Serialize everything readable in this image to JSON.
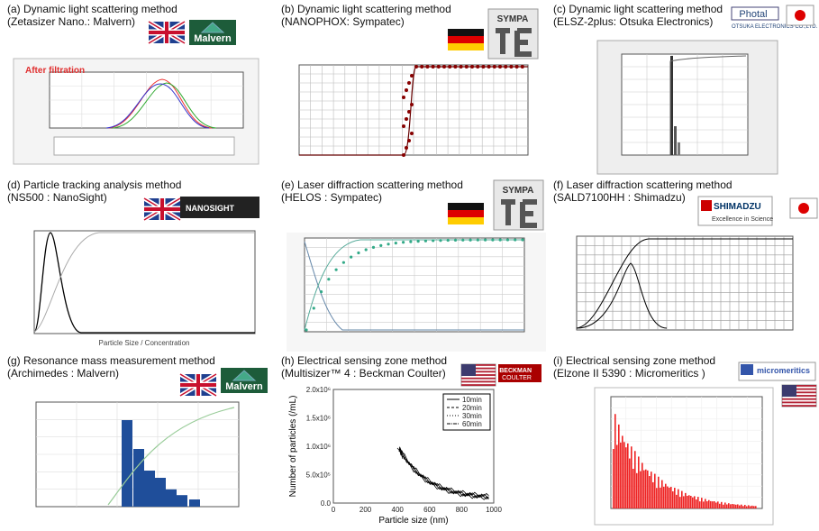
{
  "panels": [
    {
      "caption": [
        "(a) Dynamic light scattering method",
        "(Zetasizer Nano.: Malvern)"
      ],
      "logo": [
        "Malvern"
      ],
      "chart_text": [
        "After filtration"
      ]
    },
    {
      "caption": [
        "(b) Dynamic light scattering method",
        "(NANOPHOX: Sympatec)"
      ],
      "logo": [
        "SYMPA"
      ]
    },
    {
      "caption": [
        "(c) Dynamic light scattering method",
        "(ELSZ-2plus: Otsuka Electronics)"
      ],
      "logo": [
        "Photal",
        "OTSUKA ELECTRONICS CO.,LTD."
      ]
    },
    {
      "caption": [
        "(d) Particle tracking analysis method",
        "(NS500 : NanoSight)"
      ],
      "logo": [
        "NANOSIGHT"
      ],
      "chart_text": [
        "Particle Size / Concentration"
      ]
    },
    {
      "caption": [
        "(e) Laser diffraction scattering method",
        "(HELOS : Sympatec)"
      ],
      "logo": [
        "SYMPA"
      ]
    },
    {
      "caption": [
        "(f) Laser diffraction scattering method",
        "(SALD7100HH : Shimadzu)"
      ],
      "logo": [
        "SHIMADZU",
        "Excellence in Science"
      ]
    },
    {
      "caption": [
        "(g) Resonance mass measurement method",
        "(Archimedes : Malvern)"
      ],
      "logo": [
        "Malvern"
      ]
    },
    {
      "caption": [
        "(h) Electrical sensing zone method",
        "(Multisizer™ 4 : Beckman Coulter)"
      ],
      "logo": [
        "BECKMAN",
        "COULTER"
      ],
      "chart_text": [
        "Number of particles (/mL)",
        "Particle size (nm)"
      ],
      "yticks": [
        "0.0",
        "5.0x10⁵",
        "1.0x10⁶",
        "1.5x10⁶",
        "2.0x10⁶"
      ],
      "xticks": [
        "0",
        "200",
        "400",
        "600",
        "800",
        "1000"
      ],
      "legend": [
        "10min",
        "20min",
        "30min",
        "60min"
      ]
    },
    {
      "caption": [
        "(i) Electrical sensing zone method",
        "(Elzone II 5390 : Micromeritics )"
      ],
      "logo": [
        "micromeritics"
      ]
    }
  ]
}
